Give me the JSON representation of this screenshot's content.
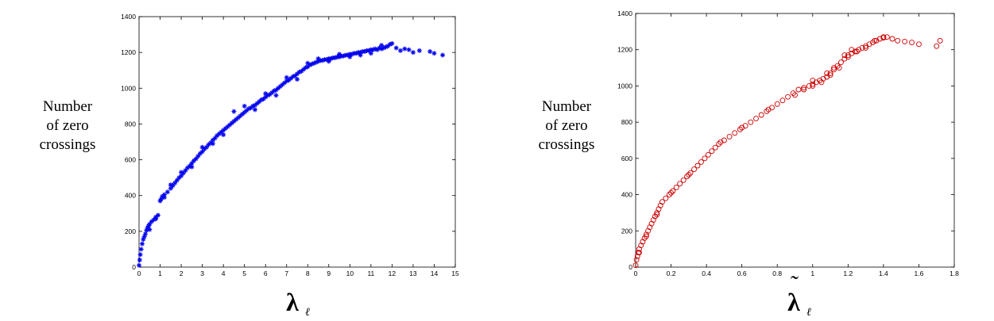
{
  "chart_data": [
    {
      "type": "scatter",
      "marker": "asterisk",
      "color": "#0000ee",
      "ylabel_lines": [
        "Number",
        "of zero",
        "crossings"
      ],
      "xlabel_symbol": "λ",
      "xlabel_subscript": "ℓ",
      "xlim": [
        0,
        15
      ],
      "ylim": [
        0,
        1400
      ],
      "xticks": [
        0,
        1,
        2,
        3,
        4,
        5,
        6,
        7,
        8,
        9,
        10,
        11,
        12,
        13,
        14,
        15
      ],
      "yticks": [
        0,
        200,
        400,
        600,
        800,
        1000,
        1200,
        1400
      ],
      "grid": false,
      "legend": "none",
      "series": [
        {
          "points": [
            [
              0.0,
              10
            ],
            [
              0.03,
              40
            ],
            [
              0.06,
              70
            ],
            [
              0.1,
              100
            ],
            [
              0.15,
              130
            ],
            [
              0.2,
              155
            ],
            [
              0.25,
              170
            ],
            [
              0.3,
              185
            ],
            [
              0.35,
              205
            ],
            [
              0.4,
              220
            ],
            [
              0.45,
              230
            ],
            [
              0.5,
              240
            ],
            [
              0.6,
              255
            ],
            [
              0.7,
              265
            ],
            [
              0.8,
              280
            ],
            [
              0.9,
              290
            ],
            [
              1.0,
              370
            ],
            [
              1.05,
              380
            ],
            [
              1.1,
              395
            ],
            [
              1.2,
              405
            ],
            [
              1.35,
              420
            ],
            [
              1.5,
              440
            ],
            [
              1.6,
              455
            ],
            [
              1.7,
              470
            ],
            [
              1.8,
              485
            ],
            [
              1.9,
              500
            ],
            [
              2.0,
              510
            ],
            [
              2.1,
              525
            ],
            [
              2.2,
              540
            ],
            [
              2.3,
              555
            ],
            [
              2.4,
              565
            ],
            [
              2.5,
              580
            ],
            [
              2.6,
              595
            ],
            [
              2.7,
              605
            ],
            [
              2.8,
              620
            ],
            [
              2.9,
              635
            ],
            [
              3.0,
              645
            ],
            [
              3.1,
              660
            ],
            [
              3.2,
              670
            ],
            [
              3.3,
              685
            ],
            [
              3.4,
              695
            ],
            [
              3.5,
              710
            ],
            [
              3.6,
              720
            ],
            [
              3.7,
              735
            ],
            [
              3.8,
              745
            ],
            [
              3.9,
              755
            ],
            [
              4.0,
              765
            ],
            [
              4.1,
              775
            ],
            [
              4.2,
              785
            ],
            [
              4.3,
              795
            ],
            [
              4.4,
              805
            ],
            [
              4.5,
              815
            ],
            [
              4.6,
              825
            ],
            [
              4.7,
              835
            ],
            [
              4.8,
              845
            ],
            [
              4.9,
              855
            ],
            [
              5.0,
              865
            ],
            [
              5.1,
              875
            ],
            [
              5.2,
              885
            ],
            [
              5.3,
              890
            ],
            [
              5.4,
              900
            ],
            [
              5.5,
              905
            ],
            [
              5.6,
              915
            ],
            [
              5.7,
              925
            ],
            [
              5.8,
              935
            ],
            [
              5.9,
              940
            ],
            [
              6.0,
              950
            ],
            [
              6.1,
              960
            ],
            [
              6.2,
              965
            ],
            [
              6.3,
              975
            ],
            [
              6.4,
              985
            ],
            [
              6.5,
              990
            ],
            [
              6.6,
              1000
            ],
            [
              6.7,
              1010
            ],
            [
              6.8,
              1020
            ],
            [
              6.9,
              1030
            ],
            [
              7.0,
              1040
            ],
            [
              7.1,
              1045
            ],
            [
              7.2,
              1055
            ],
            [
              7.3,
              1065
            ],
            [
              7.4,
              1070
            ],
            [
              7.5,
              1080
            ],
            [
              7.6,
              1090
            ],
            [
              7.7,
              1095
            ],
            [
              7.8,
              1105
            ],
            [
              7.9,
              1115
            ],
            [
              8.0,
              1120
            ],
            [
              8.1,
              1130
            ],
            [
              8.2,
              1135
            ],
            [
              8.3,
              1140
            ],
            [
              8.4,
              1145
            ],
            [
              8.5,
              1150
            ],
            [
              8.6,
              1155
            ],
            [
              8.7,
              1155
            ],
            [
              8.8,
              1160
            ],
            [
              8.9,
              1160
            ],
            [
              9.0,
              1165
            ],
            [
              9.1,
              1165
            ],
            [
              9.2,
              1170
            ],
            [
              9.3,
              1170
            ],
            [
              9.4,
              1175
            ],
            [
              9.5,
              1175
            ],
            [
              9.6,
              1180
            ],
            [
              9.7,
              1180
            ],
            [
              9.8,
              1185
            ],
            [
              9.9,
              1185
            ],
            [
              10.0,
              1190
            ],
            [
              10.1,
              1190
            ],
            [
              10.2,
              1195
            ],
            [
              10.3,
              1195
            ],
            [
              10.4,
              1200
            ],
            [
              10.5,
              1200
            ],
            [
              10.6,
              1205
            ],
            [
              10.7,
              1205
            ],
            [
              10.8,
              1210
            ],
            [
              10.9,
              1210
            ],
            [
              11.0,
              1215
            ],
            [
              11.1,
              1215
            ],
            [
              11.2,
              1220
            ],
            [
              11.3,
              1215
            ],
            [
              11.4,
              1225
            ],
            [
              11.5,
              1220
            ],
            [
              11.6,
              1225
            ],
            [
              11.7,
              1230
            ],
            [
              11.8,
              1235
            ],
            [
              11.9,
              1245
            ],
            [
              12.0,
              1250
            ],
            [
              12.2,
              1225
            ],
            [
              12.4,
              1210
            ],
            [
              12.6,
              1220
            ],
            [
              12.8,
              1215
            ],
            [
              13.0,
              1200
            ],
            [
              13.3,
              1210
            ],
            [
              13.8,
              1205
            ],
            [
              14.0,
              1195
            ],
            [
              14.4,
              1185
            ],
            [
              4.5,
              870
            ],
            [
              5.0,
              900
            ],
            [
              6.0,
              970
            ],
            [
              7.0,
              1060
            ],
            [
              8.0,
              1140
            ],
            [
              9.0,
              1150
            ],
            [
              10.0,
              1175
            ],
            [
              11.0,
              1195
            ],
            [
              3.0,
              670
            ],
            [
              2.0,
              530
            ],
            [
              1.5,
              460
            ],
            [
              5.5,
              880
            ],
            [
              6.5,
              960
            ],
            [
              7.5,
              1050
            ],
            [
              8.5,
              1165
            ],
            [
              9.5,
              1190
            ],
            [
              10.5,
              1185
            ],
            [
              11.5,
              1240
            ],
            [
              3.5,
              690
            ],
            [
              4.0,
              740
            ],
            [
              2.5,
              560
            ],
            [
              1.2,
              390
            ],
            [
              0.8,
              270
            ],
            [
              0.5,
              210
            ]
          ]
        }
      ]
    },
    {
      "type": "scatter",
      "marker": "circle",
      "color": "#cc0000",
      "ylabel_lines": [
        "Number",
        "of zero",
        "crossings"
      ],
      "xlabel_symbol": "λ",
      "xlabel_tilde": "˜",
      "xlabel_subscript": "ℓ",
      "xlim": [
        0,
        1.8
      ],
      "ylim": [
        0,
        1400
      ],
      "xticks": [
        0,
        0.2,
        0.4,
        0.6,
        0.8,
        1,
        1.2,
        1.4,
        1.6,
        1.8
      ],
      "yticks": [
        0,
        200,
        400,
        600,
        800,
        1000,
        1200,
        1400
      ],
      "grid": false,
      "legend": "none",
      "series": [
        {
          "points": [
            [
              0.0,
              10
            ],
            [
              0.005,
              40
            ],
            [
              0.01,
              60
            ],
            [
              0.015,
              80
            ],
            [
              0.02,
              100
            ],
            [
              0.03,
              120
            ],
            [
              0.04,
              140
            ],
            [
              0.05,
              160
            ],
            [
              0.06,
              180
            ],
            [
              0.07,
              200
            ],
            [
              0.08,
              220
            ],
            [
              0.09,
              240
            ],
            [
              0.1,
              260
            ],
            [
              0.11,
              280
            ],
            [
              0.12,
              300
            ],
            [
              0.13,
              320
            ],
            [
              0.14,
              340
            ],
            [
              0.15,
              360
            ],
            [
              0.17,
              380
            ],
            [
              0.19,
              400
            ],
            [
              0.21,
              420
            ],
            [
              0.23,
              440
            ],
            [
              0.25,
              460
            ],
            [
              0.27,
              480
            ],
            [
              0.29,
              500
            ],
            [
              0.31,
              520
            ],
            [
              0.33,
              540
            ],
            [
              0.35,
              560
            ],
            [
              0.37,
              580
            ],
            [
              0.39,
              600
            ],
            [
              0.41,
              620
            ],
            [
              0.43,
              640
            ],
            [
              0.45,
              660
            ],
            [
              0.47,
              680
            ],
            [
              0.5,
              700
            ],
            [
              0.53,
              720
            ],
            [
              0.56,
              740
            ],
            [
              0.59,
              760
            ],
            [
              0.62,
              780
            ],
            [
              0.65,
              800
            ],
            [
              0.68,
              820
            ],
            [
              0.71,
              840
            ],
            [
              0.74,
              860
            ],
            [
              0.77,
              880
            ],
            [
              0.8,
              900
            ],
            [
              0.83,
              920
            ],
            [
              0.86,
              940
            ],
            [
              0.89,
              960
            ],
            [
              0.92,
              980
            ],
            [
              0.95,
              990
            ],
            [
              0.98,
              1000
            ],
            [
              1.0,
              1010
            ],
            [
              1.02,
              1020
            ],
            [
              1.04,
              1030
            ],
            [
              1.06,
              1040
            ],
            [
              1.08,
              1050
            ],
            [
              1.1,
              1070
            ],
            [
              1.12,
              1090
            ],
            [
              1.14,
              1110
            ],
            [
              1.16,
              1130
            ],
            [
              1.18,
              1150
            ],
            [
              1.2,
              1170
            ],
            [
              1.22,
              1180
            ],
            [
              1.24,
              1190
            ],
            [
              1.26,
              1200
            ],
            [
              1.28,
              1210
            ],
            [
              1.3,
              1220
            ],
            [
              1.32,
              1230
            ],
            [
              1.34,
              1240
            ],
            [
              1.36,
              1250
            ],
            [
              1.38,
              1260
            ],
            [
              1.4,
              1265
            ],
            [
              1.42,
              1270
            ],
            [
              1.45,
              1260
            ],
            [
              1.48,
              1250
            ],
            [
              1.52,
              1245
            ],
            [
              1.56,
              1240
            ],
            [
              1.6,
              1230
            ],
            [
              1.7,
              1220
            ],
            [
              1.72,
              1250
            ],
            [
              0.02,
              80
            ],
            [
              0.06,
              170
            ],
            [
              0.12,
              290
            ],
            [
              0.2,
              410
            ],
            [
              0.3,
              510
            ],
            [
              0.48,
              690
            ],
            [
              0.6,
              770
            ],
            [
              0.75,
              870
            ],
            [
              0.9,
              950
            ],
            [
              1.0,
              1000
            ],
            [
              1.05,
              1020
            ],
            [
              1.1,
              1060
            ],
            [
              1.15,
              1100
            ],
            [
              1.2,
              1160
            ],
            [
              1.25,
              1190
            ],
            [
              1.3,
              1210
            ],
            [
              1.35,
              1250
            ],
            [
              1.4,
              1270
            ],
            [
              1.0,
              1030
            ],
            [
              0.95,
              980
            ],
            [
              1.08,
              1070
            ],
            [
              1.12,
              1100
            ],
            [
              1.18,
              1170
            ],
            [
              1.22,
              1200
            ]
          ]
        }
      ]
    }
  ]
}
